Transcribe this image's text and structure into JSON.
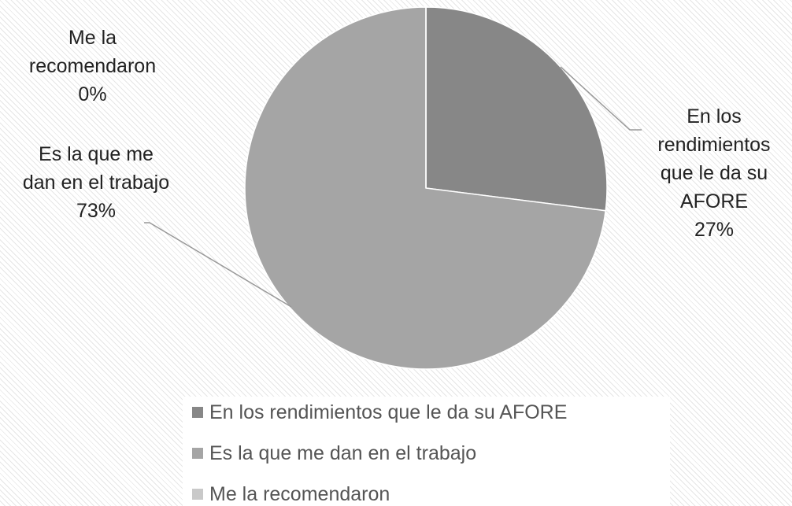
{
  "chart_data": {
    "type": "pie",
    "categories": [
      "En los rendimientos que le da su AFORE",
      "Es la que me dan en el trabajo",
      "Me la recomendaron"
    ],
    "values": [
      27,
      73,
      0
    ],
    "value_labels": [
      "27%",
      "73%",
      "0%"
    ],
    "colors": [
      "#878787",
      "#a5a5a5",
      "#c9c9c9"
    ]
  }
}
